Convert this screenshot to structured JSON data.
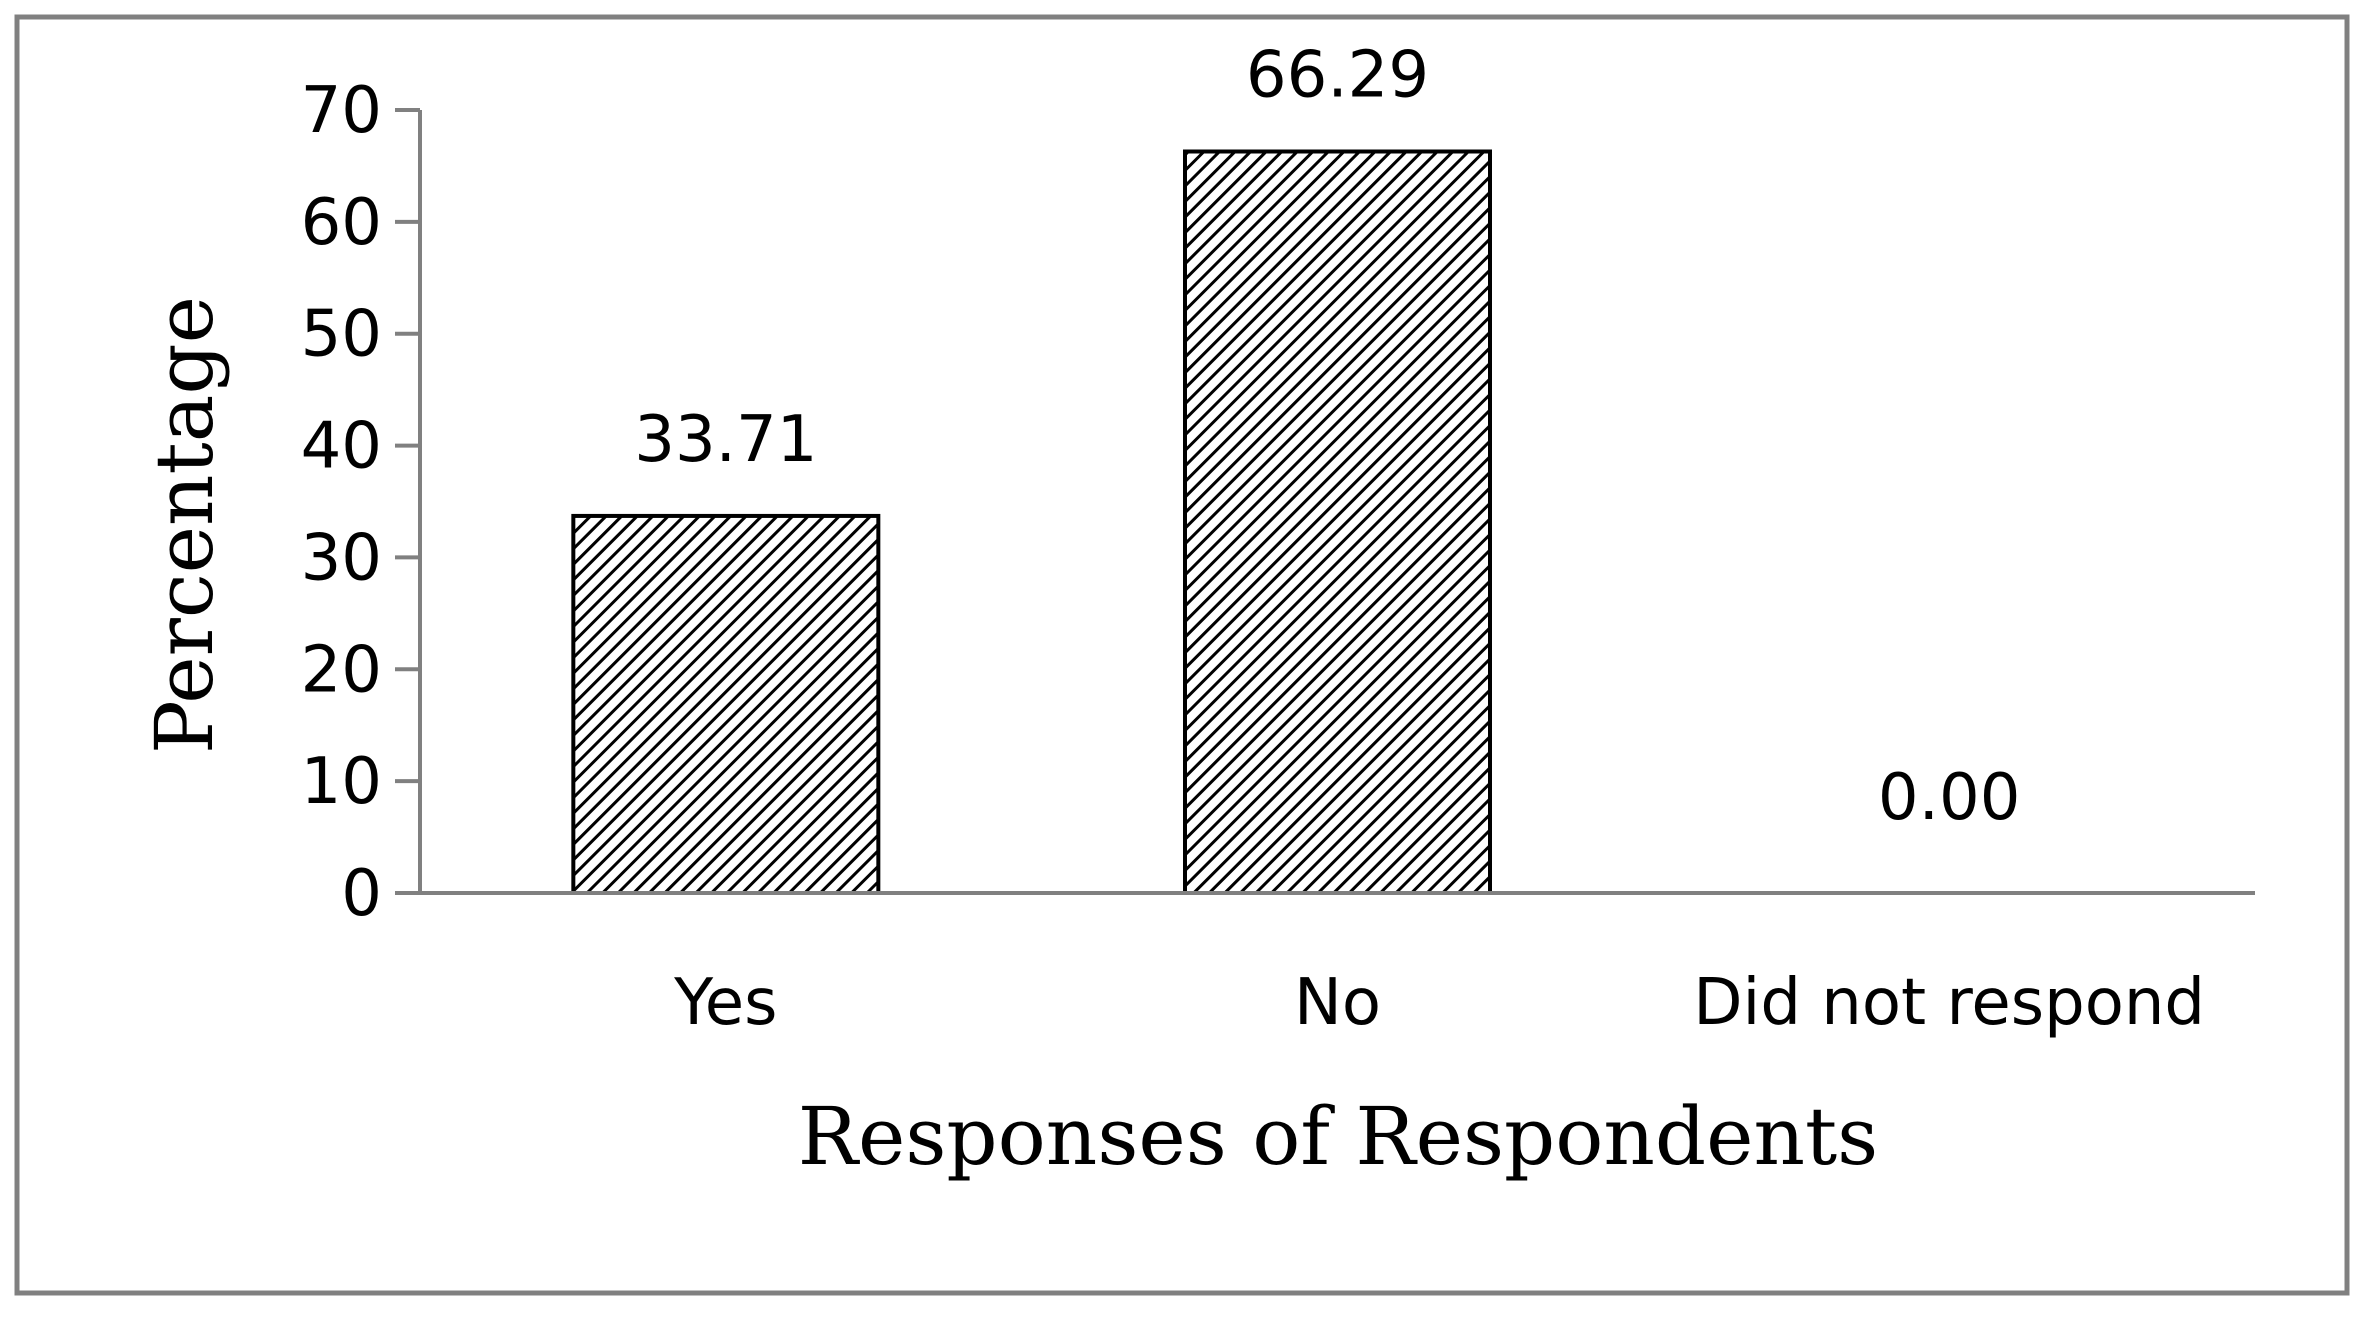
{
  "chart_data": {
    "type": "bar",
    "categories": [
      "Yes",
      "No",
      "Did not respond"
    ],
    "values": [
      33.71,
      66.29,
      0.0
    ],
    "data_labels": [
      "33.71",
      "66.29",
      "0.00"
    ],
    "title": "",
    "xlabel": "Responses of Respondents",
    "ylabel": "Percentage",
    "ylim": [
      0,
      70
    ],
    "yticks": [
      0,
      10,
      20,
      30,
      40,
      50,
      60,
      70
    ],
    "grid": false,
    "legend": "none",
    "bar_fill": "diagonal-hatch",
    "colors": {
      "bar_stroke": "#000000",
      "hatch": "#000000",
      "axis": "#808080",
      "frame": "#808080",
      "background": "#ffffff"
    }
  }
}
